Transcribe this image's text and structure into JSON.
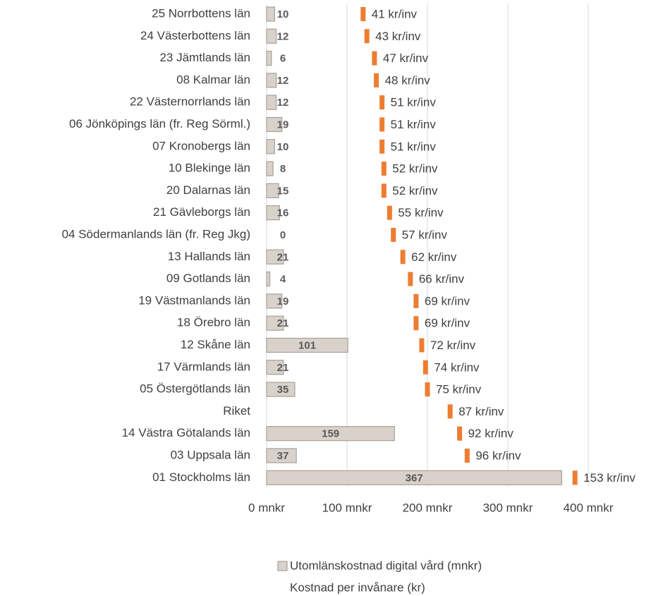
{
  "chart_data": {
    "type": "bar-marker",
    "categories": [
      "25 Norrbottens län",
      "24 Västerbottens län",
      "23 Jämtlands län",
      "08 Kalmar län",
      "22 Västernorrlands län",
      "06 Jönköpings län (fr. Reg Sörml.)",
      "07 Kronobergs län",
      "10 Blekinge län",
      "20 Dalarnas län",
      "21 Gävleborgs län",
      "04 Södermanlands län (fr. Reg Jkg)",
      "13 Hallands län",
      "09 Gotlands län",
      "19 Västmanlands län",
      "18 Örebro län",
      "12 Skåne län",
      "17 Värmlands län",
      "05 Östergötlands län",
      "Riket",
      "14 Västra Götalands län",
      "03 Uppsala län",
      "01 Stockholms län"
    ],
    "series": [
      {
        "name": "Utomlänskostnad digital vård (mnkr)",
        "color": "#d9d2cb",
        "border": "#a8a098",
        "values": [
          10,
          12,
          6,
          12,
          12,
          19,
          10,
          8,
          15,
          16,
          0,
          21,
          4,
          19,
          21,
          101,
          21,
          35,
          null,
          159,
          37,
          367
        ]
      },
      {
        "name": "Kostnad per invånare (kr)",
        "color": "#ed7d31",
        "axis": "x2",
        "values": [
          41,
          43,
          47,
          48,
          51,
          51,
          51,
          52,
          52,
          55,
          57,
          62,
          66,
          69,
          69,
          72,
          74,
          75,
          87,
          92,
          96,
          153
        ],
        "value_labels": [
          "41 kr/inv",
          "43 kr/inv",
          "47 kr/inv",
          "48 kr/inv",
          "51 kr/inv",
          "51 kr/inv",
          "51 kr/inv",
          "52 kr/inv",
          "52 kr/inv",
          "55 kr/inv",
          "57 kr/inv",
          "62 kr/inv",
          "66 kr/inv",
          "69 kr/inv",
          "69 kr/inv",
          "72 kr/inv",
          "74 kr/inv",
          "75 kr/inv",
          "87 kr/inv",
          "92 kr/inv",
          "96 kr/inv",
          "153 kr/inv"
        ]
      }
    ],
    "xlim": [
      0,
      400
    ],
    "xticks": [
      {
        "value": 0,
        "label": "0 mnkr"
      },
      {
        "value": 100,
        "label": "100 mnkr"
      },
      {
        "value": 200,
        "label": "200 mnkr"
      },
      {
        "value": 300,
        "label": "300 mnkr"
      },
      {
        "value": 400,
        "label": "400 mnkr"
      }
    ],
    "x2lim": [
      -10,
      160
    ],
    "grid": true
  }
}
